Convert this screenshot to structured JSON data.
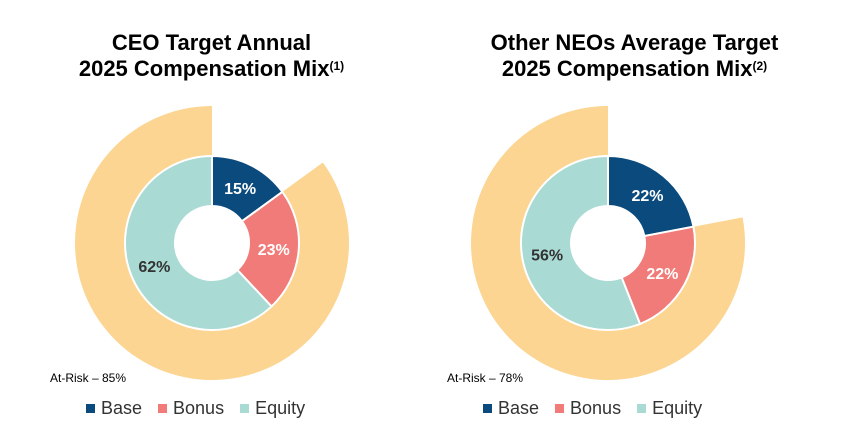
{
  "colors": {
    "base": "#0b4a7d",
    "bonus": "#f07b78",
    "equity": "#a9dad4",
    "at_risk": "#fbd591"
  },
  "chart_data": [
    {
      "type": "pie",
      "title_line1": "CEO Target Annual",
      "title_line2": "2025 Compensation Mix",
      "title_note": "(1)",
      "slices": [
        {
          "name": "Base",
          "value": 15,
          "label": "15%"
        },
        {
          "name": "Bonus",
          "value": 23,
          "label": "23%"
        },
        {
          "name": "Equity",
          "value": 62,
          "label": "62%"
        }
      ],
      "at_risk_value": 85,
      "at_risk_label": "At-Risk – 85%",
      "legend": [
        "Base",
        "Bonus",
        "Equity"
      ],
      "legend_position": "bottom"
    },
    {
      "type": "pie",
      "title_line1": "Other NEOs Average Target",
      "title_line2": "2025 Compensation Mix",
      "title_note": "(2)",
      "slices": [
        {
          "name": "Base",
          "value": 22,
          "label": "22%"
        },
        {
          "name": "Bonus",
          "value": 22,
          "label": "22%"
        },
        {
          "name": "Equity",
          "value": 56,
          "label": "56%"
        }
      ],
      "at_risk_value": 78,
      "at_risk_label": "At-Risk – 78%",
      "legend": [
        "Base",
        "Bonus",
        "Equity"
      ],
      "legend_position": "bottom"
    }
  ]
}
